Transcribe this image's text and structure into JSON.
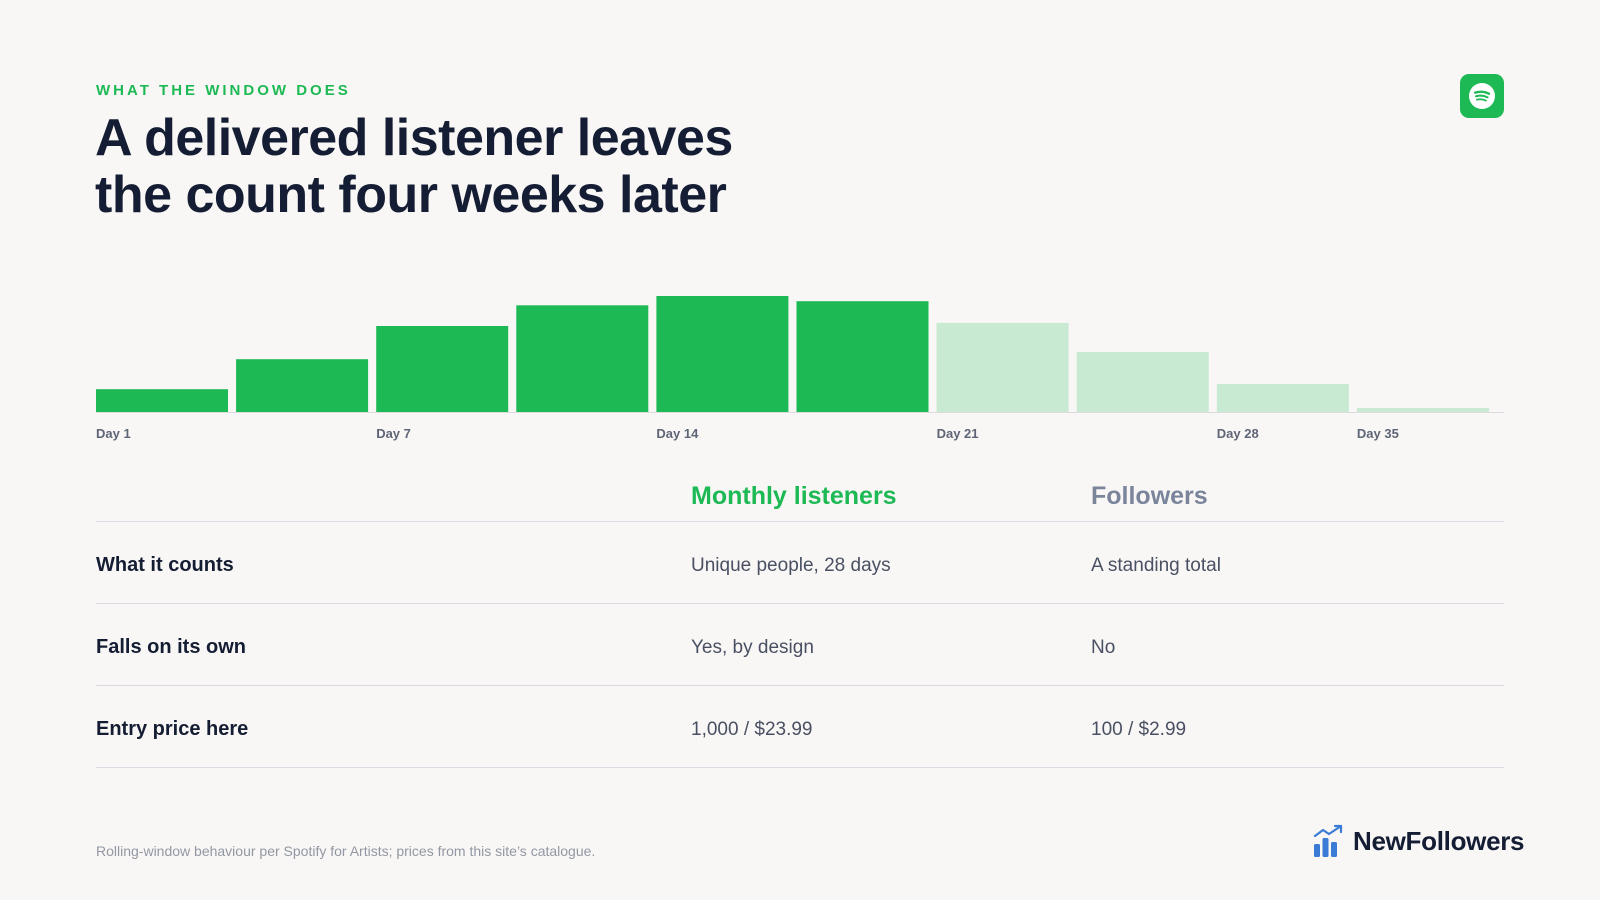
{
  "header": {
    "eyebrow": "WHAT THE WINDOW DOES",
    "title": "A delivered listener leaves the count four weeks later"
  },
  "brand_badge": {
    "icon": "spotify-icon",
    "color": "#1db954"
  },
  "chart_data": {
    "type": "bar",
    "categories": [
      "Day 1",
      "",
      "Day 7",
      "",
      "Day 14",
      "",
      "Day 21",
      "",
      "Day 28",
      "Day 35"
    ],
    "values": [
      22,
      51,
      83,
      103,
      112,
      107,
      86,
      58,
      27,
      4
    ],
    "in_window": [
      true,
      true,
      true,
      true,
      true,
      true,
      false,
      false,
      false,
      false
    ],
    "colors": {
      "in_window": "#1db954",
      "out_window": "#c8e9d2"
    },
    "ylim": [
      0,
      112
    ],
    "grid": false,
    "title": "",
    "xlabel": "",
    "ylabel": ""
  },
  "table": {
    "headers": {
      "col_a": "Monthly listeners",
      "col_b": "Followers"
    },
    "rows": [
      {
        "label": "What it counts",
        "a": "Unique people, 28 days",
        "b": "A standing total"
      },
      {
        "label": "Falls on its own",
        "a": "Yes, by design",
        "b": "No"
      },
      {
        "label": "Entry price here",
        "a": "1,000 / $23.99",
        "b": "100 / $2.99"
      }
    ]
  },
  "footer": {
    "note": "Rolling-window behaviour per Spotify for Artists; prices from this site’s catalogue.",
    "logo_text": "NewFollowers",
    "logo_icon": "bar-chart-trend-icon"
  }
}
